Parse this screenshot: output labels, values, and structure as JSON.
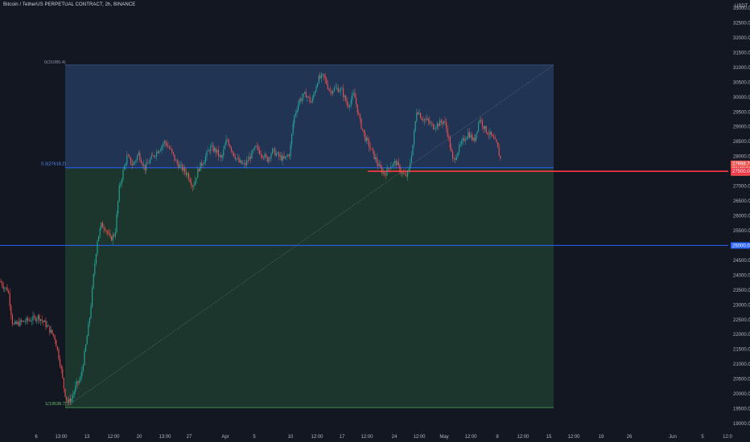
{
  "header": {
    "title": "Bitcoin / TetherUS PERPETUAL CONTRACT, 2h, BINANCE"
  },
  "colors": {
    "background": "#131722",
    "up": "#26a69a",
    "down": "#ef5350",
    "fib_top_zone": "#25375a",
    "fib_bottom_zone": "#1f3a2f",
    "fib_line": "#2962ff",
    "support_line": "#f23645",
    "horizontal_line": "#2962ff",
    "trendline": "#787b86"
  },
  "chart_data": {
    "type": "candlestick",
    "symbol": "Bitcoin / TetherUS PERPETUAL CONTRACT",
    "interval": "2h",
    "exchange": "BINANCE",
    "y_unit": "USDT",
    "ylim": [
      19000,
      33000
    ],
    "y_ticks": [
      "33000.0",
      "32500.0",
      "32000.0",
      "31500.0",
      "31000.0",
      "30500.0",
      "30000.0",
      "29500.0",
      "29000.0",
      "28500.0",
      "28000.0",
      "27500.0",
      "27000.0",
      "26500.0",
      "26000.0",
      "25500.0",
      "25000.0",
      "24500.0",
      "24000.0",
      "23500.0",
      "23000.0",
      "22500.0",
      "22000.0",
      "21500.0",
      "21000.0",
      "20500.0",
      "20000.0",
      "19500.0",
      "19000.0"
    ],
    "x_ticks": [
      "6",
      "13:00",
      "13",
      "12:00",
      "20",
      "13:00",
      "27",
      "Apr",
      "5",
      "10",
      "12:00",
      "17",
      "12:00",
      "24",
      "12:00",
      "May",
      "12:00",
      "8",
      "12:00",
      "15",
      "12:00",
      "19",
      "26",
      "Jun",
      "5",
      "12:0"
    ],
    "price_path": [
      [
        0,
        23800
      ],
      [
        5,
        23600
      ],
      [
        10,
        23500
      ],
      [
        16,
        22300
      ],
      [
        25,
        22400
      ],
      [
        38,
        22500
      ],
      [
        48,
        22600
      ],
      [
        58,
        22300
      ],
      [
        68,
        21900
      ],
      [
        75,
        21000
      ],
      [
        80,
        20100
      ],
      [
        84,
        19700
      ],
      [
        89,
        19850
      ],
      [
        95,
        20300
      ],
      [
        100,
        20500
      ],
      [
        106,
        21500
      ],
      [
        112,
        22700
      ],
      [
        117,
        24200
      ],
      [
        121,
        25200
      ],
      [
        126,
        25700
      ],
      [
        131,
        25600
      ],
      [
        137,
        25200
      ],
      [
        143,
        25400
      ],
      [
        148,
        26900
      ],
      [
        153,
        27500
      ],
      [
        158,
        28000
      ],
      [
        165,
        27700
      ],
      [
        172,
        28100
      ],
      [
        180,
        27600
      ],
      [
        187,
        27900
      ],
      [
        196,
        28200
      ],
      [
        205,
        28500
      ],
      [
        212,
        28200
      ],
      [
        219,
        27800
      ],
      [
        226,
        27600
      ],
      [
        233,
        27400
      ],
      [
        240,
        27000
      ],
      [
        247,
        27600
      ],
      [
        254,
        27900
      ],
      [
        261,
        28300
      ],
      [
        268,
        28200
      ],
      [
        275,
        27900
      ],
      [
        282,
        28600
      ],
      [
        290,
        28100
      ],
      [
        297,
        27800
      ],
      [
        304,
        27700
      ],
      [
        311,
        28000
      ],
      [
        318,
        28300
      ],
      [
        325,
        28100
      ],
      [
        332,
        27900
      ],
      [
        339,
        28200
      ],
      [
        346,
        28000
      ],
      [
        353,
        27900
      ],
      [
        360,
        28100
      ],
      [
        365,
        29300
      ],
      [
        372,
        29900
      ],
      [
        380,
        30100
      ],
      [
        387,
        29800
      ],
      [
        395,
        30600
      ],
      [
        402,
        30700
      ],
      [
        410,
        30200
      ],
      [
        418,
        30300
      ],
      [
        425,
        30200
      ],
      [
        432,
        29700
      ],
      [
        440,
        30100
      ],
      [
        447,
        29200
      ],
      [
        454,
        28600
      ],
      [
        460,
        28300
      ],
      [
        465,
        28000
      ],
      [
        472,
        27600
      ],
      [
        478,
        27400
      ],
      [
        485,
        27700
      ],
      [
        492,
        27800
      ],
      [
        498,
        27500
      ],
      [
        504,
        27300
      ],
      [
        508,
        27500
      ],
      [
        513,
        28400
      ],
      [
        518,
        29600
      ],
      [
        524,
        29300
      ],
      [
        531,
        29200
      ],
      [
        538,
        29000
      ],
      [
        545,
        29100
      ],
      [
        552,
        29200
      ],
      [
        557,
        28700
      ],
      [
        563,
        27800
      ],
      [
        569,
        28200
      ],
      [
        575,
        28500
      ],
      [
        582,
        28800
      ],
      [
        589,
        28500
      ],
      [
        596,
        29300
      ],
      [
        603,
        28900
      ],
      [
        610,
        28700
      ],
      [
        617,
        28400
      ],
      [
        622,
        27900
      ]
    ],
    "fibonacci": {
      "levels": [
        {
          "label": "0(31080.4)",
          "price": 31080.4
        },
        {
          "label": "0.3(27618.2)",
          "price": 27618.2
        },
        {
          "label": "1(19538.7)",
          "price": 19538.7
        }
      ]
    },
    "support_line_price": 27500.0,
    "horizontal_line_price": 25000.0,
    "price_labels": [
      {
        "text": "27698.7",
        "price": 27698.7
      },
      {
        "text": "01:46:04",
        "price": 27698.7
      },
      {
        "text": "27500.0",
        "price": 27500.0
      },
      {
        "text": "25000.0",
        "price": 25000.0
      }
    ],
    "grid": false
  }
}
